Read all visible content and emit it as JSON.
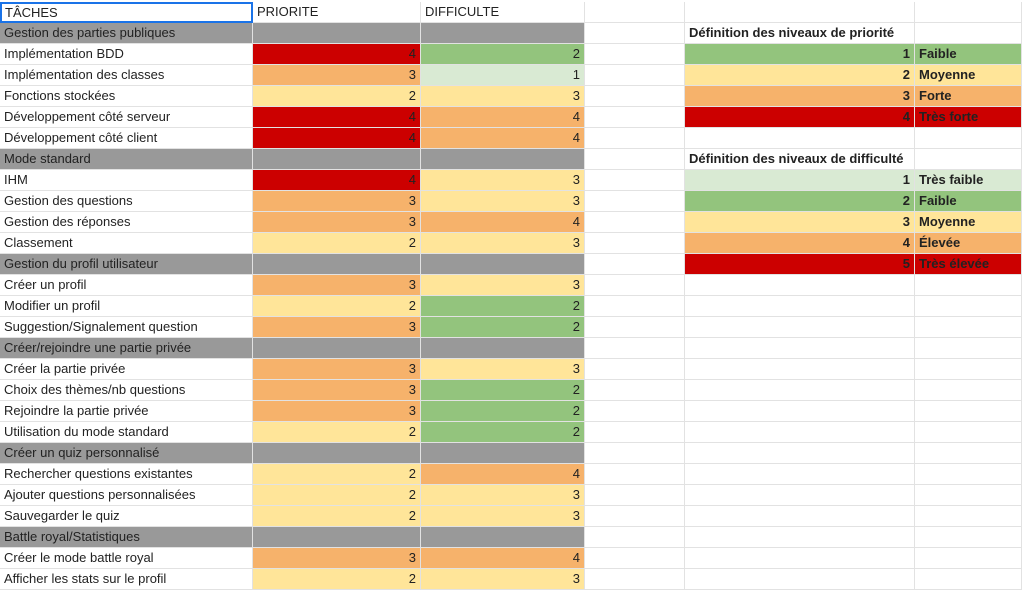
{
  "headers": {
    "tasks": "TÂCHES",
    "priority": "PRIORITE",
    "difficulty": "DIFFICULTE"
  },
  "sections": [
    {
      "title": "Gestion des parties publiques",
      "rows": [
        {
          "task": "Implémentation BDD",
          "priority": "4",
          "difficulty": "2"
        },
        {
          "task": "Implémentation des classes",
          "priority": "3",
          "difficulty": "1"
        },
        {
          "task": "Fonctions stockées",
          "priority": "2",
          "difficulty": "3"
        },
        {
          "task": "Développement côté serveur",
          "priority": "4",
          "difficulty": "4"
        },
        {
          "task": "Développement côté client",
          "priority": "4",
          "difficulty": "4"
        }
      ]
    },
    {
      "title": "Mode standard",
      "rows": [
        {
          "task": "IHM",
          "priority": "4",
          "difficulty": "3"
        },
        {
          "task": "Gestion des questions",
          "priority": "3",
          "difficulty": "3"
        },
        {
          "task": "Gestion des réponses",
          "priority": "3",
          "difficulty": "4"
        },
        {
          "task": "Classement",
          "priority": "2",
          "difficulty": "3"
        }
      ]
    },
    {
      "title": "Gestion du profil utilisateur",
      "rows": [
        {
          "task": "Créer un profil",
          "priority": "3",
          "difficulty": "3"
        },
        {
          "task": "Modifier un profil",
          "priority": "2",
          "difficulty": "2"
        },
        {
          "task": "Suggestion/Signalement question",
          "priority": "3",
          "difficulty": "2"
        }
      ]
    },
    {
      "title": "Créer/rejoindre une partie privée",
      "rows": [
        {
          "task": "Créer la partie privée",
          "priority": "3",
          "difficulty": "3"
        },
        {
          "task": "Choix des thèmes/nb questions",
          "priority": "3",
          "difficulty": "2"
        },
        {
          "task": "Rejoindre la partie privée",
          "priority": "3",
          "difficulty": "2"
        },
        {
          "task": "Utilisation du mode standard",
          "priority": "2",
          "difficulty": "2"
        }
      ]
    },
    {
      "title": "Créer un quiz personnalisé",
      "rows": [
        {
          "task": "Rechercher questions existantes",
          "priority": "2",
          "difficulty": "4"
        },
        {
          "task": "Ajouter questions personnalisées",
          "priority": "2",
          "difficulty": "3"
        },
        {
          "task": "Sauvegarder le quiz",
          "priority": "2",
          "difficulty": "3"
        }
      ]
    },
    {
      "title": "Battle royal/Statistiques",
      "rows": [
        {
          "task": "Créer le mode battle royal",
          "priority": "3",
          "difficulty": "4"
        },
        {
          "task": "Afficher les stats sur le profil",
          "priority": "2",
          "difficulty": "3"
        }
      ]
    }
  ],
  "priority_legend": {
    "title": "Définition des niveaux de priorité",
    "items": [
      {
        "level": "1",
        "label": "Faible"
      },
      {
        "level": "2",
        "label": "Moyenne"
      },
      {
        "level": "3",
        "label": "Forte"
      },
      {
        "level": "4",
        "label": "Très forte"
      }
    ]
  },
  "difficulty_legend": {
    "title": "Définition des niveaux de difficulté",
    "items": [
      {
        "level": "1",
        "label": "Très faible"
      },
      {
        "level": "2",
        "label": "Faible"
      },
      {
        "level": "3",
        "label": "Moyenne"
      },
      {
        "level": "4",
        "label": "Élevée"
      },
      {
        "level": "5",
        "label": "Très élevée"
      }
    ]
  },
  "colors": {
    "section_gray": "#999999",
    "green_light": "#d9ead3",
    "green": "#93c47d",
    "yellow": "#ffe599",
    "orange": "#f6b26b",
    "red": "#cc0000",
    "selection_blue": "#1a73e8"
  }
}
